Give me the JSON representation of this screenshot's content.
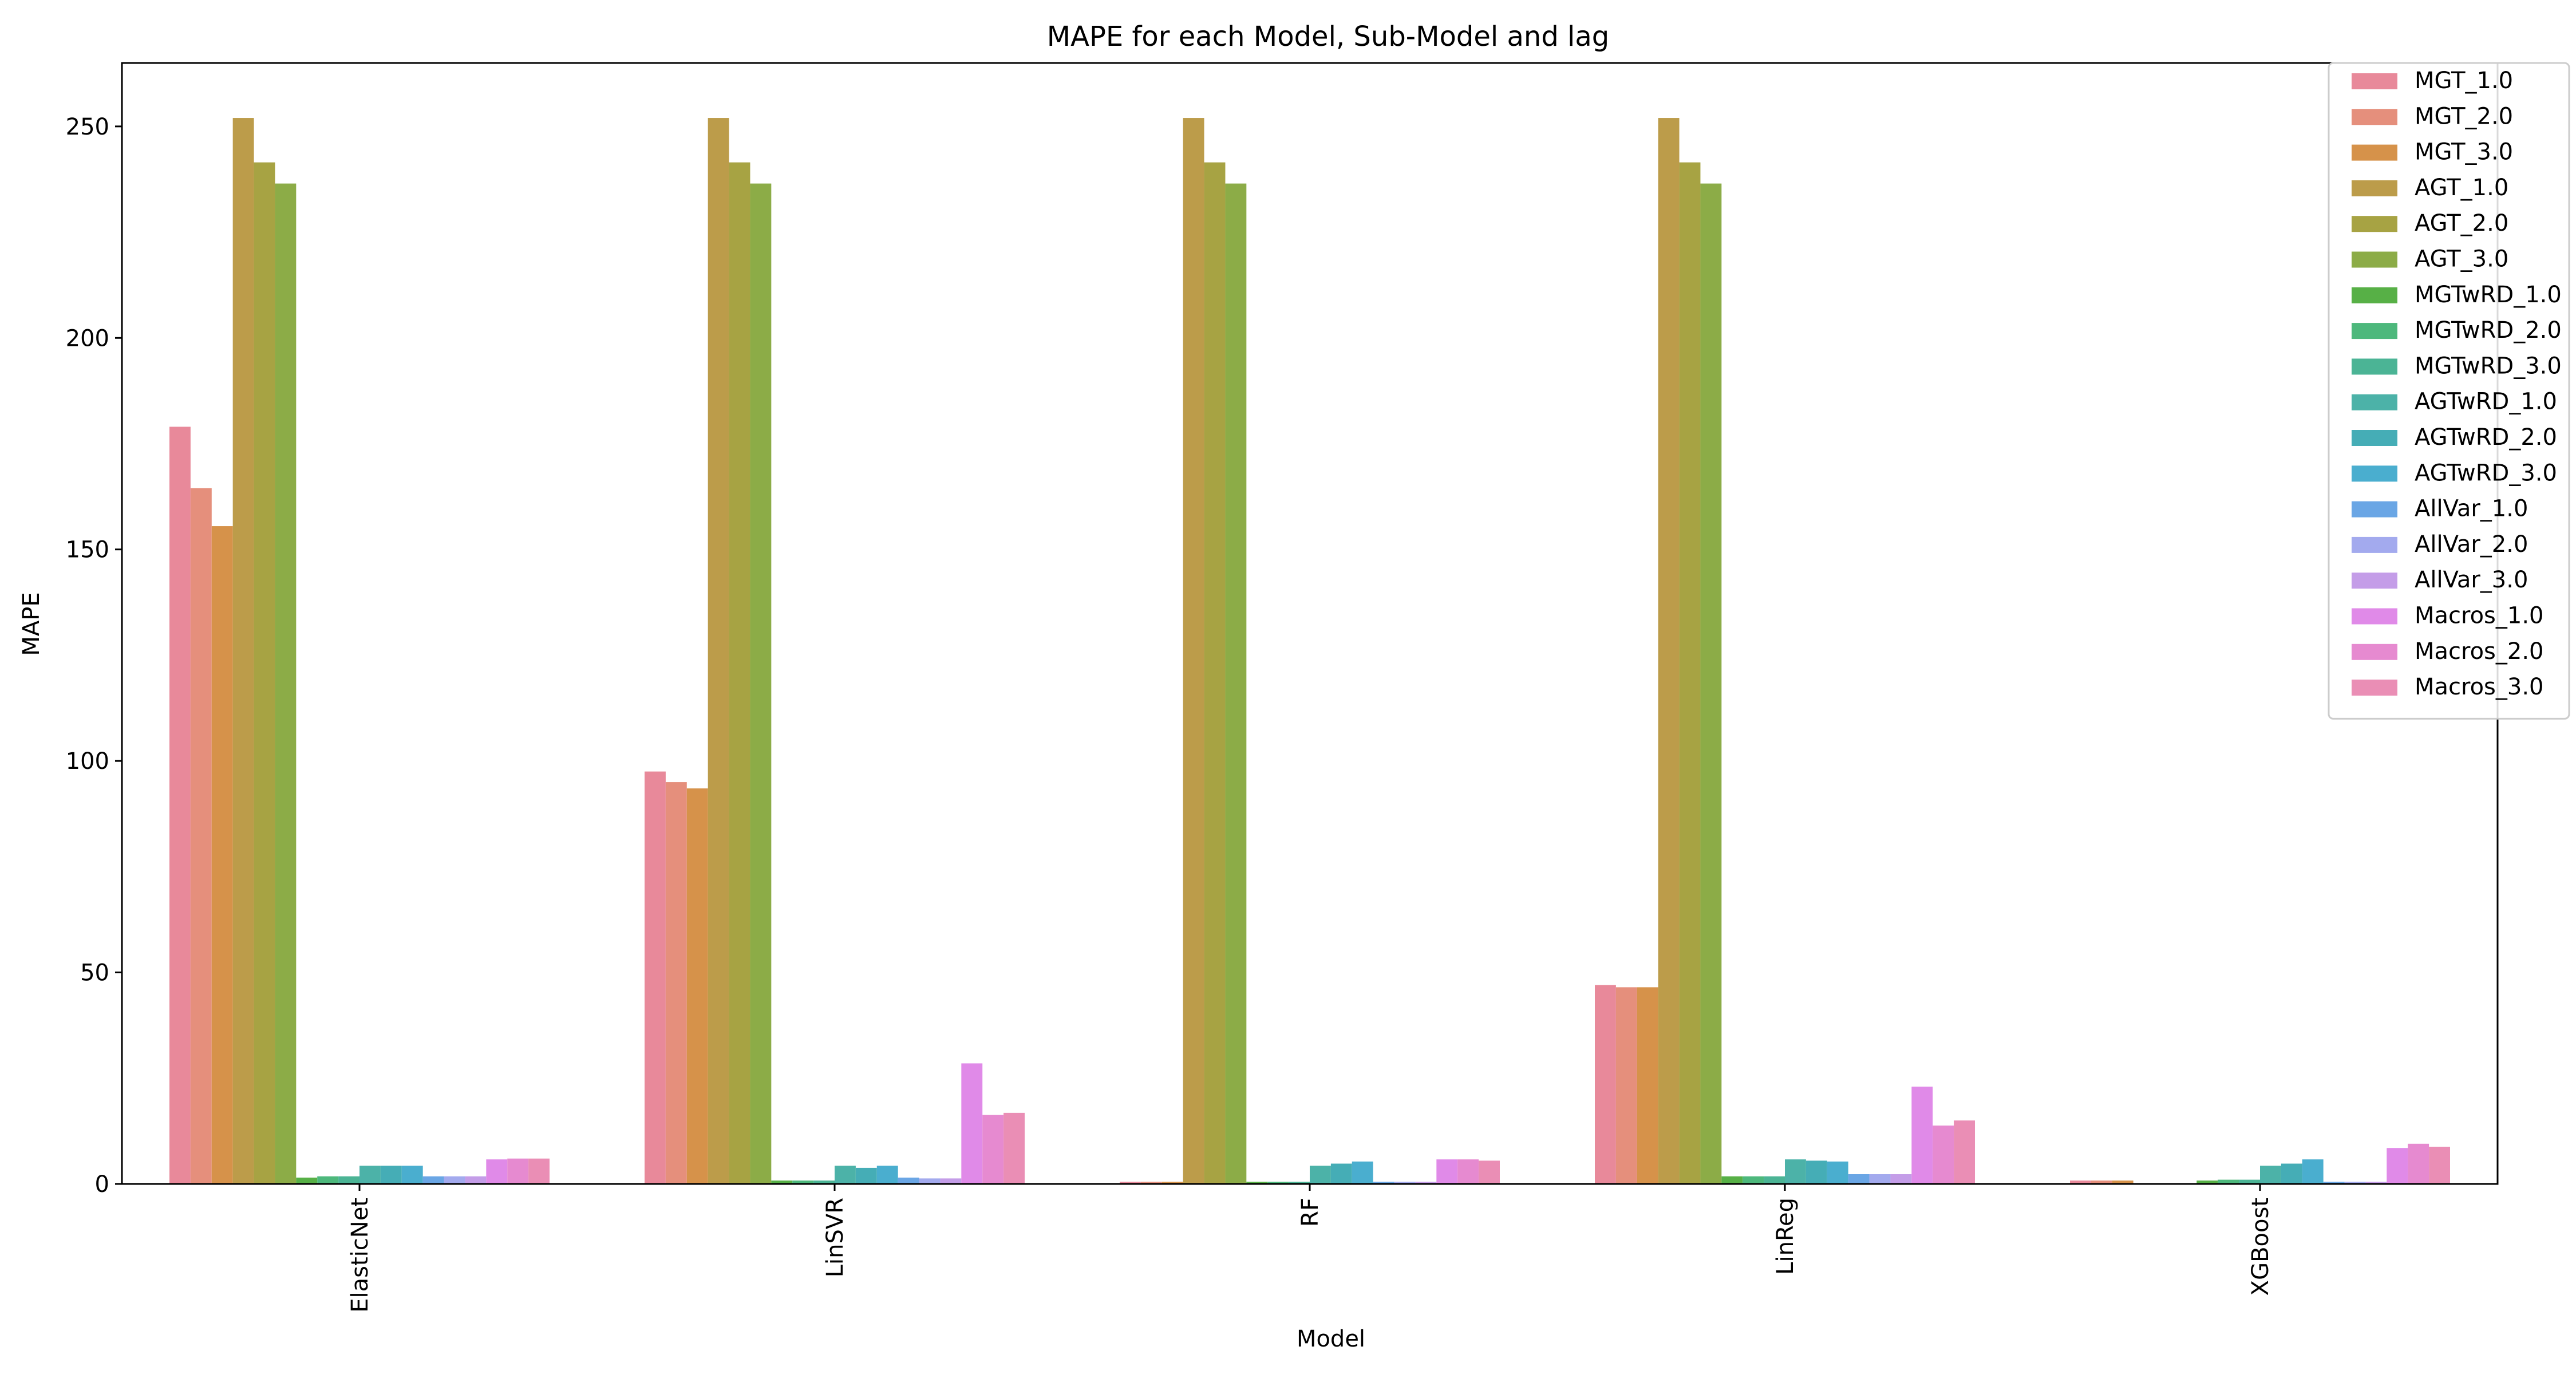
{
  "chart_data": {
    "type": "bar",
    "title": "MAPE for each Model, Sub-Model and lag",
    "xlabel": "Model",
    "ylabel": "MAPE",
    "ylim": [
      0,
      265
    ],
    "yticks": [
      0,
      50,
      100,
      150,
      200,
      250
    ],
    "grid": false,
    "legend_position": "top-right",
    "categories": [
      "ElasticNet",
      "LinSVR",
      "RF",
      "LinReg",
      "XGBoost"
    ],
    "series": [
      {
        "name": "MGT_1.0",
        "color": "#e8899a",
        "values": [
          179,
          97.5,
          0.5,
          47,
          0.8
        ]
      },
      {
        "name": "MGT_2.0",
        "color": "#e58f7c",
        "values": [
          164.5,
          95,
          0.5,
          46.5,
          0.8
        ]
      },
      {
        "name": "MGT_3.0",
        "color": "#d6924a",
        "values": [
          155.5,
          93.5,
          0.5,
          46.5,
          0.8
        ]
      },
      {
        "name": "AGT_1.0",
        "color": "#bc9c4a",
        "values": [
          252,
          252,
          252,
          252,
          0
        ]
      },
      {
        "name": "AGT_2.0",
        "color": "#a7a343",
        "values": [
          241.5,
          241.5,
          241.5,
          241.5,
          0
        ]
      },
      {
        "name": "AGT_3.0",
        "color": "#8cac47",
        "values": [
          236.5,
          236.5,
          236.5,
          236.5,
          0
        ]
      },
      {
        "name": "MGTwRD_1.0",
        "color": "#57b046",
        "values": [
          1.5,
          0.8,
          0.5,
          1.8,
          0.8
        ]
      },
      {
        "name": "MGTwRD_2.0",
        "color": "#4db87c",
        "values": [
          1.8,
          0.8,
          0.5,
          1.8,
          1.0
        ]
      },
      {
        "name": "MGTwRD_3.0",
        "color": "#4bb495",
        "values": [
          1.8,
          0.8,
          0.5,
          1.8,
          1.0
        ]
      },
      {
        "name": "AGTwRD_1.0",
        "color": "#4cb2a8",
        "values": [
          4.3,
          4.3,
          4.3,
          5.8,
          4.3
        ]
      },
      {
        "name": "AGTwRD_2.0",
        "color": "#45adb6",
        "values": [
          4.3,
          3.8,
          4.8,
          5.5,
          4.8
        ]
      },
      {
        "name": "AGTwRD_3.0",
        "color": "#4aaecf",
        "values": [
          4.3,
          4.3,
          5.3,
          5.3,
          5.8
        ]
      },
      {
        "name": "AllVar_1.0",
        "color": "#6aa6e5",
        "values": [
          1.8,
          1.5,
          0.5,
          2.3,
          0.5
        ]
      },
      {
        "name": "AllVar_2.0",
        "color": "#a3aaee",
        "values": [
          1.8,
          1.3,
          0.5,
          2.3,
          0.5
        ]
      },
      {
        "name": "AllVar_3.0",
        "color": "#c49de8",
        "values": [
          1.8,
          1.3,
          0.5,
          2.3,
          0.5
        ]
      },
      {
        "name": "Macros_1.0",
        "color": "#e08ae8",
        "values": [
          5.8,
          28.5,
          5.8,
          23,
          8.5
        ]
      },
      {
        "name": "Macros_2.0",
        "color": "#e68ad0",
        "values": [
          6.0,
          16.3,
          5.8,
          13.8,
          9.5
        ]
      },
      {
        "name": "Macros_3.0",
        "color": "#ea8eb5",
        "values": [
          6.0,
          16.8,
          5.5,
          15.0,
          8.8
        ]
      }
    ]
  }
}
